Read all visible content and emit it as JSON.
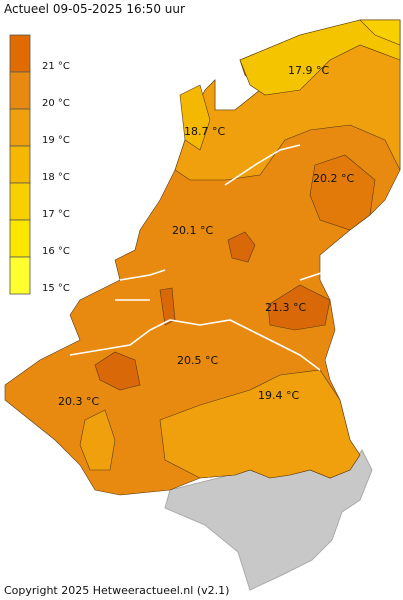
{
  "header": {
    "title": "Actueel 09-05-2025  16:50 uur"
  },
  "legend": {
    "items": [
      {
        "label": "21 °C",
        "color": "#e06c00"
      },
      {
        "label": "20 °C",
        "color": "#e88a10"
      },
      {
        "label": "19 °C",
        "color": "#efa00c"
      },
      {
        "label": "18 °C",
        "color": "#f5b800"
      },
      {
        "label": "17 °C",
        "color": "#f8d000"
      },
      {
        "label": "16 °C",
        "color": "#fbe600"
      },
      {
        "label": "15 °C",
        "color": "#ffff30"
      }
    ]
  },
  "labels": [
    {
      "text": "17.9 °C"
    },
    {
      "text": "18.7 °C"
    },
    {
      "text": "20.2 °C"
    },
    {
      "text": "20.1 °C"
    },
    {
      "text": "21.3 °C"
    },
    {
      "text": "20.5 °C"
    },
    {
      "text": "20.3 °C"
    },
    {
      "text": "19.4 °C"
    }
  ],
  "footer": {
    "copyright": "Copyright 2025 Hetweeractueel.nl (v2.1)"
  }
}
